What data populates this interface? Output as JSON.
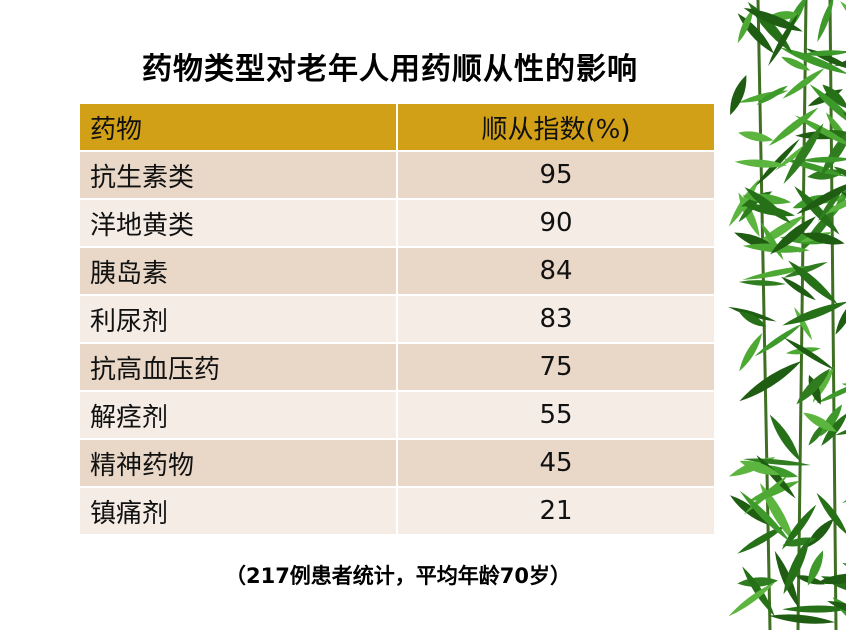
{
  "title": "药物类型对老年人用药顺从性的影响",
  "table": {
    "headers": [
      "药物",
      "顺从指数(%)"
    ],
    "rows": [
      {
        "drug": "抗生素类",
        "index": "95"
      },
      {
        "drug": "洋地黄类",
        "index": "90"
      },
      {
        "drug": "胰岛素",
        "index": "84"
      },
      {
        "drug": "利尿剂",
        "index": "83"
      },
      {
        "drug": "抗高血压药",
        "index": "75"
      },
      {
        "drug": "解痉剂",
        "index": "55"
      },
      {
        "drug": "精神药物",
        "index": "45"
      },
      {
        "drug": "镇痛剂",
        "index": "21"
      }
    ]
  },
  "note": "（217例患者统计，平均年龄70岁）",
  "colors": {
    "header": "#d2a016",
    "row_dark": "#e9d8c8",
    "row_light": "#f4ece5",
    "leaf_green": "#2f7d1f"
  },
  "decoration": "bamboo-leaves"
}
